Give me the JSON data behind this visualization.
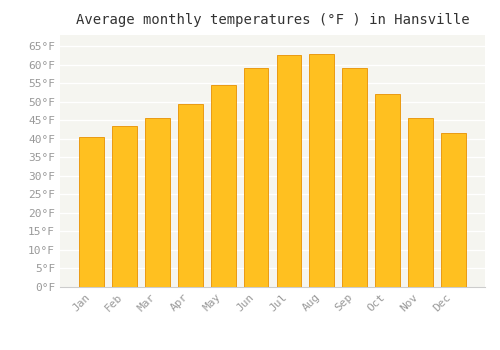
{
  "title": "Average monthly temperatures (°F ) in Hansville",
  "months": [
    "Jan",
    "Feb",
    "Mar",
    "Apr",
    "May",
    "Jun",
    "Jul",
    "Aug",
    "Sep",
    "Oct",
    "Nov",
    "Dec"
  ],
  "values": [
    40.5,
    43.5,
    45.5,
    49.5,
    54.5,
    59.0,
    62.5,
    63.0,
    59.0,
    52.0,
    45.5,
    41.5
  ],
  "bar_color_main": "#FFC020",
  "bar_color_edge": "#E89000",
  "ylim": [
    0,
    68
  ],
  "yticks": [
    0,
    5,
    10,
    15,
    20,
    25,
    30,
    35,
    40,
    45,
    50,
    55,
    60,
    65
  ],
  "background_color": "#FFFFFF",
  "plot_bg_color": "#F5F5F0",
  "grid_color": "#FFFFFF",
  "title_fontsize": 10,
  "tick_fontsize": 8,
  "title_font": "monospace",
  "tick_font": "monospace",
  "tick_color": "#999999"
}
